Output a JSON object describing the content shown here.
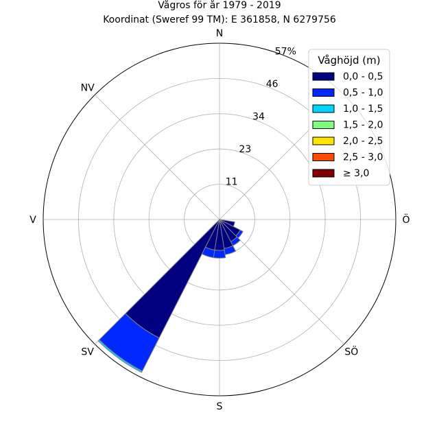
{
  "chart_data": {
    "type": "windrose",
    "title": "Vågros för år 1979 - 2019",
    "subtitle": "Koordinat (Sweref 99 TM): E 361858, N 6279756",
    "directions": [
      {
        "key": "N",
        "label": "N",
        "angle": 0
      },
      {
        "key": "NV",
        "label": "NV",
        "angle": 315
      },
      {
        "key": "V",
        "label": "V",
        "angle": 270
      },
      {
        "key": "SV",
        "label": "SV",
        "angle": 225
      },
      {
        "key": "S",
        "label": "S",
        "angle": 180
      },
      {
        "key": "SO",
        "label": "SÖ",
        "angle": 135
      },
      {
        "key": "O",
        "label": "Ö",
        "angle": 90
      }
    ],
    "radial_ticks": [
      "11",
      "23",
      "34",
      "46",
      "57%"
    ],
    "radial_tick_values": [
      11.4,
      22.8,
      34.2,
      45.6,
      57
    ],
    "rmax": 57,
    "grid": true,
    "legend": {
      "title": "Våghöjd (m)",
      "placement": "top-right",
      "entries": [
        {
          "label": "0,0 - 0,5",
          "color": "#000080"
        },
        {
          "label": "0,5 - 1,0",
          "color": "#0028ff"
        },
        {
          "label": "1,0 - 1,5",
          "color": "#00d4ff"
        },
        {
          "label": "1,5 - 2,0",
          "color": "#7dff7a"
        },
        {
          "label": "2,0 - 2,5",
          "color": "#ffe600"
        },
        {
          "label": "2,5 - 3,0",
          "color": "#ff4a00"
        },
        {
          "label": "≥ 3,0",
          "color": "#800000"
        }
      ]
    },
    "bin_width_deg": 18,
    "sectors": [
      {
        "direction_deg": 108,
        "cumulative": [
          5.0
        ]
      },
      {
        "direction_deg": 126,
        "cumulative": [
          7.5,
          8.5
        ]
      },
      {
        "direction_deg": 144,
        "cumulative": [
          8.0,
          9.5
        ]
      },
      {
        "direction_deg": 162,
        "cumulative": [
          9.5,
          11.5
        ]
      },
      {
        "direction_deg": 180,
        "cumulative": [
          10.0,
          12.5
        ]
      },
      {
        "direction_deg": 198,
        "cumulative": [
          10.0,
          12.5
        ]
      },
      {
        "direction_deg": 216,
        "cumulative": [
          43.0,
          55.0,
          55.5
        ]
      }
    ]
  }
}
